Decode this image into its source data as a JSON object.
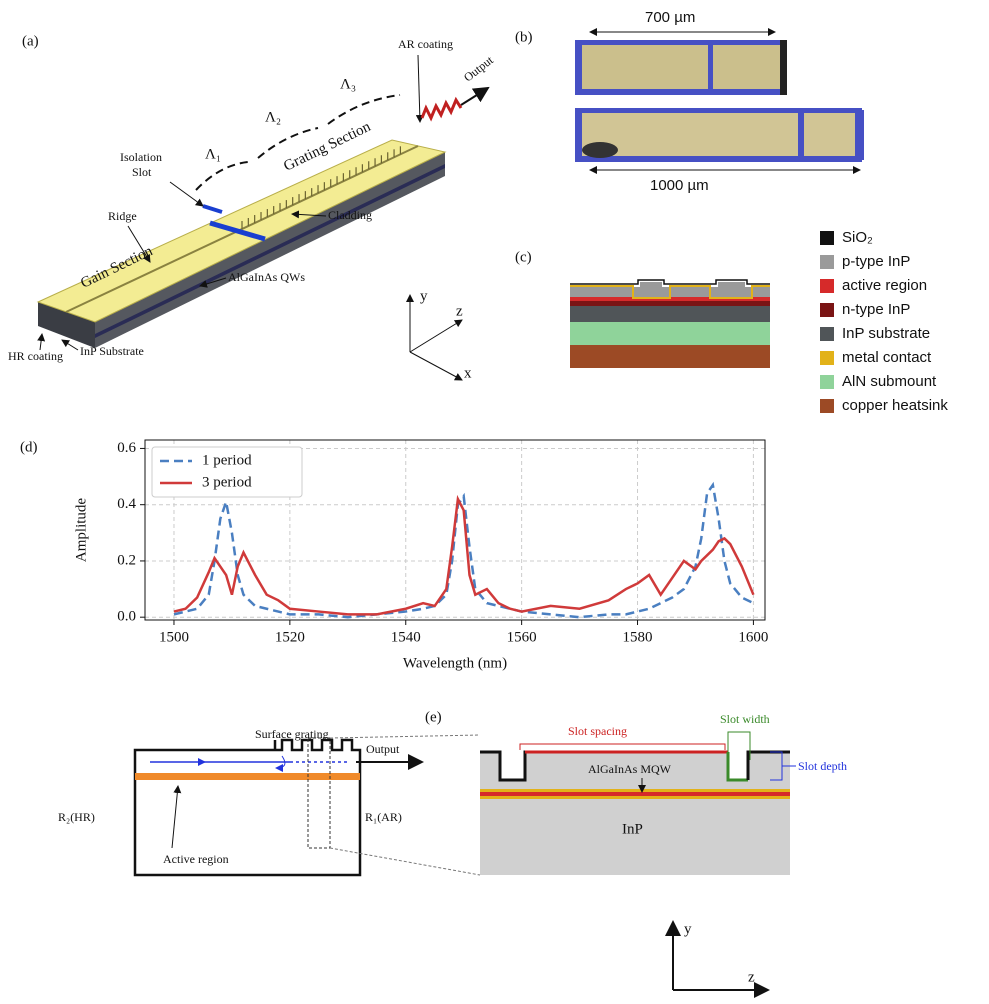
{
  "panel_a": {
    "label": "(a)",
    "ar_coating": "AR coating",
    "lambda1": "Λ₁",
    "lambda2": "Λ₂",
    "lambda3": "Λ₃",
    "output": "Output",
    "isolation_slot": [
      "Isolation",
      "Slot"
    ],
    "grating_section": "Grating Section",
    "ridge": "Ridge",
    "cladding": "Cladding",
    "gain_section": "Gain Section",
    "qws": "AlGaInAs QWs",
    "hr_coating": "HR coating",
    "substrate": "InP Substrate",
    "axis_y": "y",
    "axis_z": "z",
    "axis_x": "x"
  },
  "panel_b": {
    "label": "(b)",
    "length_short": "700 µm",
    "length_long": "1000 µm"
  },
  "panel_c": {
    "label": "(c)",
    "legend": [
      {
        "name": "SiO₂",
        "color": "#111111"
      },
      {
        "name": "p-type InP",
        "color": "#9a9a9a"
      },
      {
        "name": "active region",
        "color": "#d62a2a"
      },
      {
        "name": "n-type InP",
        "color": "#7a1414"
      },
      {
        "name": "InP substrate",
        "color": "#505558"
      },
      {
        "name": "metal contact",
        "color": "#e2b219"
      },
      {
        "name": "AlN submount",
        "color": "#8fd39a"
      },
      {
        "name": "copper heatsink",
        "color": "#9c4a25"
      }
    ]
  },
  "chart_data": {
    "type": "line",
    "panel_label": "(d)",
    "xlabel": "Wavelength (nm)",
    "ylabel": "Amplitude",
    "x": [
      1500,
      1502,
      1504,
      1506,
      1507,
      1508,
      1509,
      1510,
      1511,
      1512,
      1514,
      1516,
      1518,
      1520,
      1525,
      1530,
      1535,
      1540,
      1543,
      1545,
      1547,
      1548,
      1549,
      1550,
      1551,
      1552,
      1554,
      1556,
      1558,
      1560,
      1565,
      1570,
      1575,
      1578,
      1580,
      1582,
      1584,
      1586,
      1588,
      1590,
      1591,
      1592,
      1593,
      1594,
      1595,
      1596,
      1598,
      1600
    ],
    "series": [
      {
        "name": "1 period",
        "color": "#4a7fc1",
        "linestyle": "dashed",
        "values": [
          0.01,
          0.02,
          0.03,
          0.08,
          0.2,
          0.35,
          0.41,
          0.3,
          0.15,
          0.08,
          0.04,
          0.03,
          0.02,
          0.01,
          0.01,
          0.0,
          0.01,
          0.02,
          0.03,
          0.04,
          0.08,
          0.2,
          0.4,
          0.43,
          0.25,
          0.1,
          0.05,
          0.04,
          0.03,
          0.02,
          0.01,
          0.0,
          0.01,
          0.01,
          0.02,
          0.03,
          0.05,
          0.07,
          0.1,
          0.18,
          0.28,
          0.44,
          0.47,
          0.35,
          0.2,
          0.12,
          0.07,
          0.05
        ]
      },
      {
        "name": "3 period",
        "color": "#d03a3a",
        "linestyle": "solid",
        "values": [
          0.02,
          0.03,
          0.07,
          0.16,
          0.21,
          0.18,
          0.15,
          0.08,
          0.18,
          0.23,
          0.15,
          0.08,
          0.06,
          0.03,
          0.02,
          0.01,
          0.01,
          0.03,
          0.05,
          0.04,
          0.1,
          0.25,
          0.42,
          0.38,
          0.15,
          0.08,
          0.1,
          0.05,
          0.03,
          0.02,
          0.04,
          0.03,
          0.06,
          0.1,
          0.12,
          0.15,
          0.08,
          0.14,
          0.2,
          0.17,
          0.2,
          0.22,
          0.24,
          0.27,
          0.28,
          0.26,
          0.18,
          0.08
        ]
      }
    ],
    "xlim": [
      1495,
      1602
    ],
    "ylim": [
      -0.01,
      0.63
    ],
    "xticks": [
      1500,
      1520,
      1540,
      1560,
      1580,
      1600
    ],
    "yticks": [
      {
        "value": 0,
        "label": "0.0"
      },
      0.2,
      0.4,
      0.6
    ],
    "grid": true,
    "legend": "upper left"
  },
  "panel_e": {
    "label": "(e)",
    "surface_grating": "Surface grating",
    "output": "Output",
    "r2": "R₂(HR)",
    "r1": "R₁(AR)",
    "active_region": "Active region",
    "slot_spacing": "Slot spacing",
    "slot_width": "Slot width",
    "slot_depth": "Slot depth",
    "mqw": "AlGaInAs MQW",
    "inp": "InP",
    "axis_y": "y",
    "axis_z": "z"
  }
}
